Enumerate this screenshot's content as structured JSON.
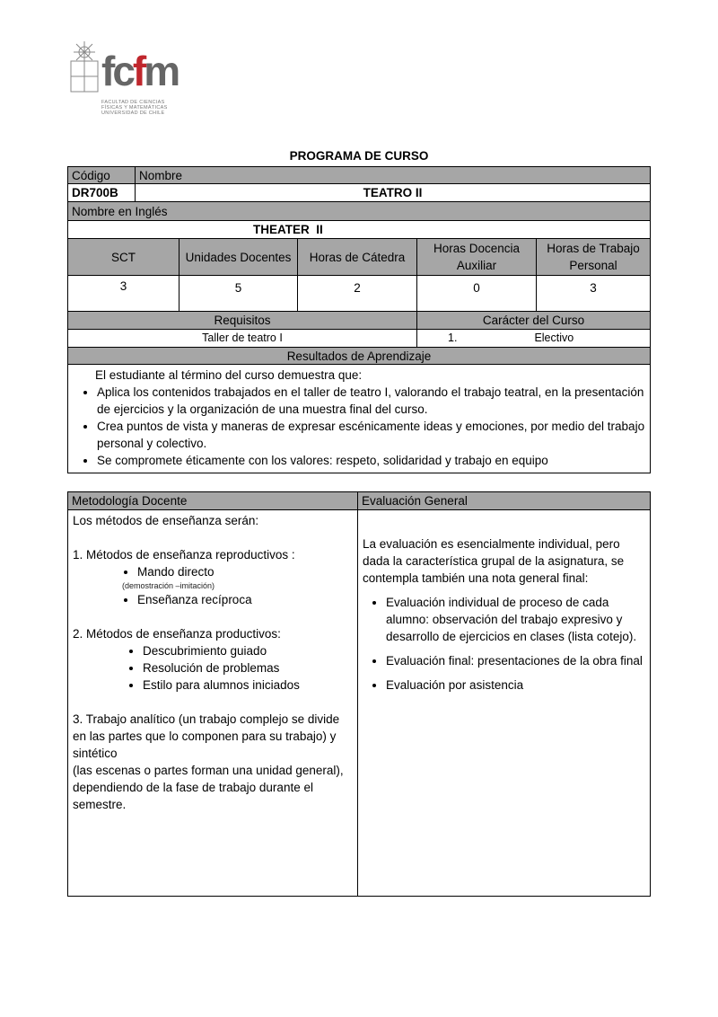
{
  "logo": {
    "wordmark": "fcfm",
    "subtitle": [
      "FACULTAD DE CIENCIAS",
      "FÍSICAS Y MATEMÁTICAS",
      "UNIVERSIDAD DE CHILE"
    ],
    "accent": "#c0272d"
  },
  "title": "PROGRAMA DE CURSO",
  "course": {
    "codigo_label": "Código",
    "nombre_label": "Nombre",
    "codigo": "DR700B",
    "nombre": "TEATRO II",
    "ingles_label": "Nombre en Inglés",
    "ingles": "THEATER  II"
  },
  "hours": {
    "headers": [
      "SCT",
      "Unidades Docentes",
      "Horas de Cátedra",
      "Horas Docencia Auxiliar",
      "Horas de Trabajo Personal"
    ],
    "values": [
      "3",
      "5",
      "2",
      "0",
      "3"
    ]
  },
  "requisitos": {
    "label": "Requisitos",
    "value": "Taller de teatro I",
    "caracter_label": "Carácter del Curso",
    "caracter_num": "1.",
    "caracter": "Electivo"
  },
  "resultados": {
    "label": "Resultados de Aprendizaje",
    "intro": "El estudiante al término del curso demuestra que:",
    "items": [
      "Aplica los contenidos trabajados en el taller de teatro I, valorando el trabajo teatral, en la presentación de ejercicios  y la organización de una muestra final del curso.",
      "Crea puntos de vista y maneras de expresar escénicamente ideas  y emociones,  por  medio del trabajo personal y colectivo.",
      "Se compromete éticamente con los valores: respeto, solidaridad y trabajo en equipo"
    ]
  },
  "metodologia": {
    "label": "Metodología Docente",
    "intro": "Los métodos de enseñanza serán:",
    "sec1": "1. Métodos de enseñanza reproductivos :",
    "sec1_items": [
      "Mando directo",
      "Enseñanza recíproca"
    ],
    "sec1_note": "(demostración  –imitación)",
    "sec2": "2. Métodos de enseñanza productivos:",
    "sec2_items": [
      "Descubrimiento guiado",
      "Resolución de problemas",
      "Estilo para alumnos iniciados"
    ],
    "sec3": "3. Trabajo analítico (un trabajo complejo se divide en las partes que lo componen para su trabajo) y sintético",
    "sec3b": "(las escenas o partes forman una unidad general), dependiendo de la fase de trabajo durante el semestre."
  },
  "evaluacion": {
    "label": "Evaluación General",
    "intro": "La evaluación es esencialmente individual, pero dada la característica grupal de la asignatura, se contempla también una nota general final:",
    "items": [
      "Evaluación individual de proceso de cada alumno: observación del trabajo expresivo y desarrollo de ejercicios en clases (lista cotejo).",
      "Evaluación final: presentaciones  de la obra final",
      "Evaluación por asistencia"
    ]
  }
}
